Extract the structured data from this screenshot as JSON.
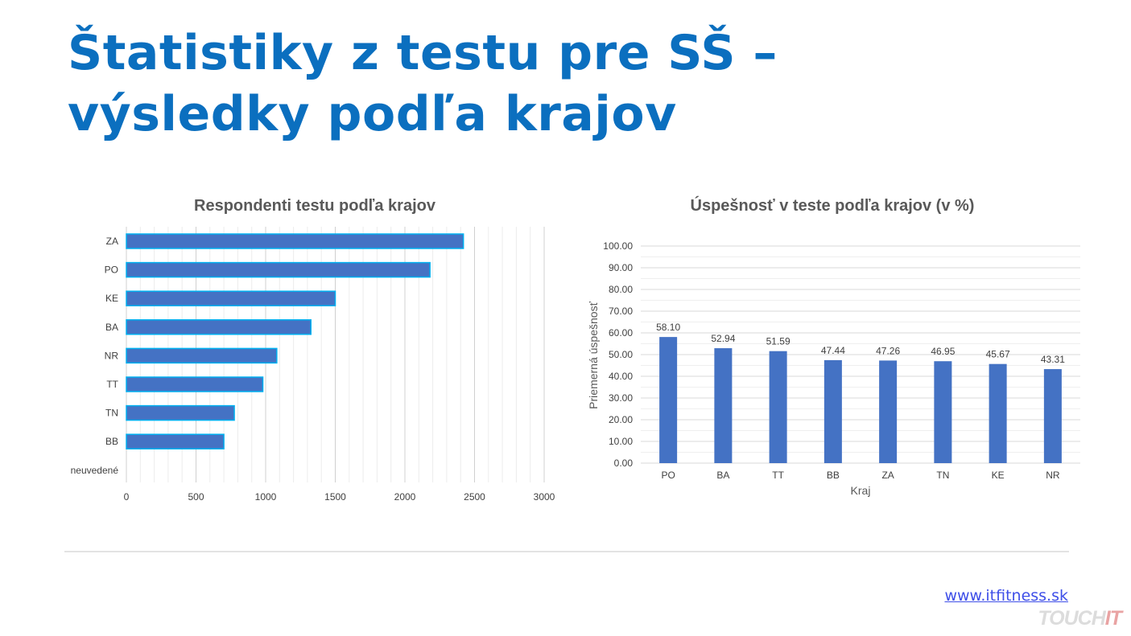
{
  "slide": {
    "title": "Štatistiky z testu pre SŠ – výsledky podľa krajov",
    "link": "www.itfitness.sk",
    "watermark_part1": "TOUCH",
    "watermark_part2": "IT"
  },
  "colors": {
    "title": "#0b6fbf",
    "bar_fill": "#4472c4",
    "bar_outline": "#00b0f0",
    "grid": "#d9d9d9"
  },
  "chart_data": [
    {
      "type": "bar",
      "orientation": "horizontal",
      "title": "Respondenti testu podľa krajov",
      "categories": [
        "ZA",
        "PO",
        "KE",
        "BA",
        "NR",
        "TT",
        "TN",
        "BB",
        "neuvedené"
      ],
      "values": [
        2420,
        2180,
        1500,
        1325,
        1080,
        980,
        775,
        700,
        0
      ],
      "xlim": [
        0,
        3000
      ],
      "xticks": [
        0,
        500,
        1000,
        1500,
        2000,
        2500,
        3000
      ],
      "grid": true
    },
    {
      "type": "bar",
      "orientation": "vertical",
      "title": "Úspešnosť v teste podľa krajov (v %)",
      "categories": [
        "PO",
        "BA",
        "TT",
        "BB",
        "ZA",
        "TN",
        "KE",
        "NR"
      ],
      "values": [
        58.1,
        52.94,
        51.59,
        47.44,
        47.26,
        46.95,
        45.67,
        43.31
      ],
      "data_labels": [
        "58.10",
        "52.94",
        "51.59",
        "47.44",
        "47.26",
        "46.95",
        "45.67",
        "43.31"
      ],
      "ylim": [
        0,
        100
      ],
      "yticks": [
        "0.00",
        "10.00",
        "20.00",
        "30.00",
        "40.00",
        "50.00",
        "60.00",
        "70.00",
        "80.00",
        "90.00",
        "100.00"
      ],
      "xlabel": "Kraj",
      "ylabel": "Priemerná úspešnosť",
      "grid": true
    }
  ]
}
